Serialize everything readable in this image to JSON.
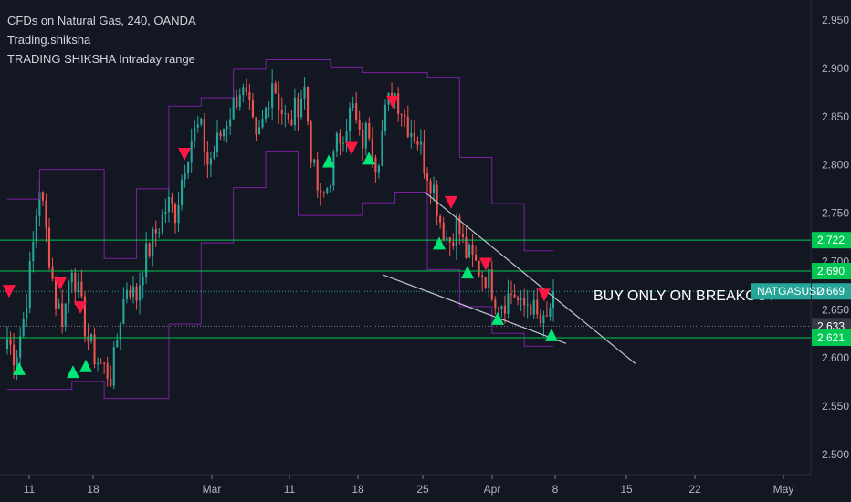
{
  "chart_data": {
    "type": "candlestick",
    "legend_lines": [
      "CFDs on Natural Gas, 240, OANDA",
      "Trading.shiksha",
      "TRADING SHIKSHA Intraday range"
    ],
    "symbol": "NATGASUSD",
    "y_range": [
      2.48,
      2.98
    ],
    "y_ticks": [
      "2.950",
      "2.900",
      "2.850",
      "2.800",
      "2.750",
      "2.700",
      "2.650",
      "2.600",
      "2.550",
      "2.500"
    ],
    "x_ticks": [
      "11",
      "18",
      "Mar",
      "11",
      "18",
      "25",
      "Apr",
      "8",
      "15",
      "22",
      "May"
    ],
    "last_price": 2.669,
    "price_tags": [
      {
        "value": 2.722,
        "label": "2.722",
        "color": "#00c853"
      },
      {
        "value": 2.69,
        "label": "2.690",
        "color": "#00c853"
      },
      {
        "value": 2.669,
        "label": "2.669",
        "color": "#26a69a"
      },
      {
        "value": 2.633,
        "label": "2.633",
        "color": "#363a45"
      },
      {
        "value": 2.621,
        "label": "2.621",
        "color": "#00c853"
      }
    ],
    "horizontal_levels": [
      2.722,
      2.69,
      2.621
    ],
    "annotation": "BUY ONLY ON BREAKOUT",
    "close_series": [
      2.62,
      2.6,
      2.64,
      2.7,
      2.78,
      2.72,
      2.66,
      2.64,
      2.7,
      2.66,
      2.62,
      2.6,
      2.59,
      2.58,
      2.64,
      2.68,
      2.66,
      2.7,
      2.72,
      2.74,
      2.76,
      2.75,
      2.8,
      2.83,
      2.84,
      2.8,
      2.82,
      2.84,
      2.86,
      2.88,
      2.86,
      2.82,
      2.85,
      2.89,
      2.86,
      2.84,
      2.86,
      2.88,
      2.8,
      2.76,
      2.78,
      2.82,
      2.84,
      2.86,
      2.82,
      2.84,
      2.8,
      2.85,
      2.88,
      2.86,
      2.84,
      2.83,
      2.8,
      2.78,
      2.74,
      2.72,
      2.74,
      2.71,
      2.7,
      2.69,
      2.68,
      2.66,
      2.66,
      2.67,
      2.65,
      2.66,
      2.64,
      2.63,
      2.669
    ],
    "buy_signals": [
      2.588,
      2.585,
      2.591,
      2.803,
      2.806,
      2.718,
      2.688,
      2.64,
      2.623
    ],
    "sell_signals": [
      2.67,
      2.678,
      2.653,
      2.812,
      2.818,
      2.866,
      2.762,
      2.698,
      2.666
    ]
  }
}
